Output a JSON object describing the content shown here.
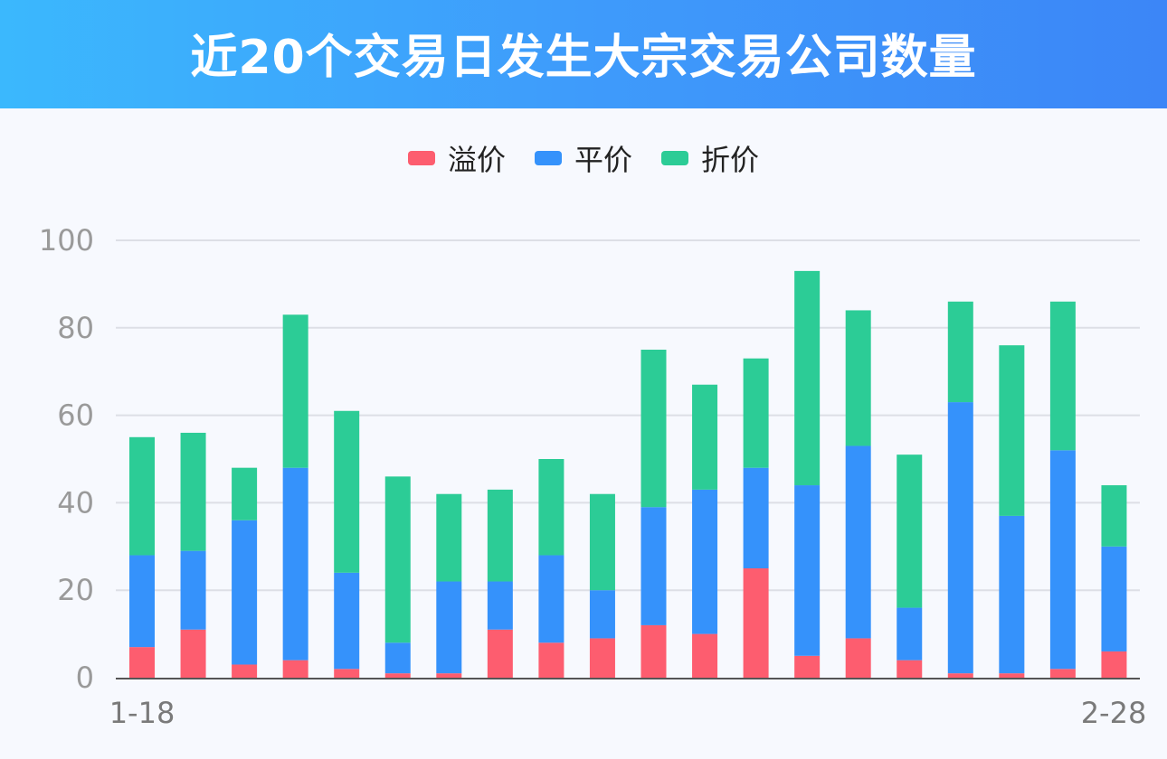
{
  "title": "近20个交易日发生大宗交易公司数量",
  "colors": {
    "premium": "#fd5d6f",
    "parity": "#3592fb",
    "discount": "#2ccc96",
    "grid": "#dddfe6",
    "axis": "#555555"
  },
  "chart_data": {
    "type": "bar",
    "stacked": true,
    "title": "近20个交易日发生大宗交易公司数量",
    "x_first_label": "1-18",
    "x_last_label": "2-28",
    "ylim": [
      0,
      100
    ],
    "yticks": [
      "0",
      "20",
      "40",
      "60",
      "80",
      "100"
    ],
    "grid": true,
    "legend_position": "top",
    "series": [
      {
        "name": "溢价",
        "color": "#fd5d6f",
        "values": [
          7,
          11,
          3,
          4,
          2,
          1,
          1,
          11,
          8,
          9,
          12,
          10,
          25,
          5,
          9,
          4,
          1,
          1,
          2,
          6
        ]
      },
      {
        "name": "平价",
        "color": "#3592fb",
        "values": [
          21,
          18,
          33,
          44,
          22,
          7,
          21,
          11,
          20,
          11,
          27,
          33,
          23,
          39,
          44,
          12,
          62,
          36,
          50,
          24
        ]
      },
      {
        "name": "折价",
        "color": "#2ccc96",
        "values": [
          27,
          27,
          12,
          35,
          37,
          38,
          20,
          21,
          22,
          22,
          36,
          24,
          25,
          49,
          31,
          35,
          23,
          39,
          34,
          14
        ]
      }
    ]
  }
}
